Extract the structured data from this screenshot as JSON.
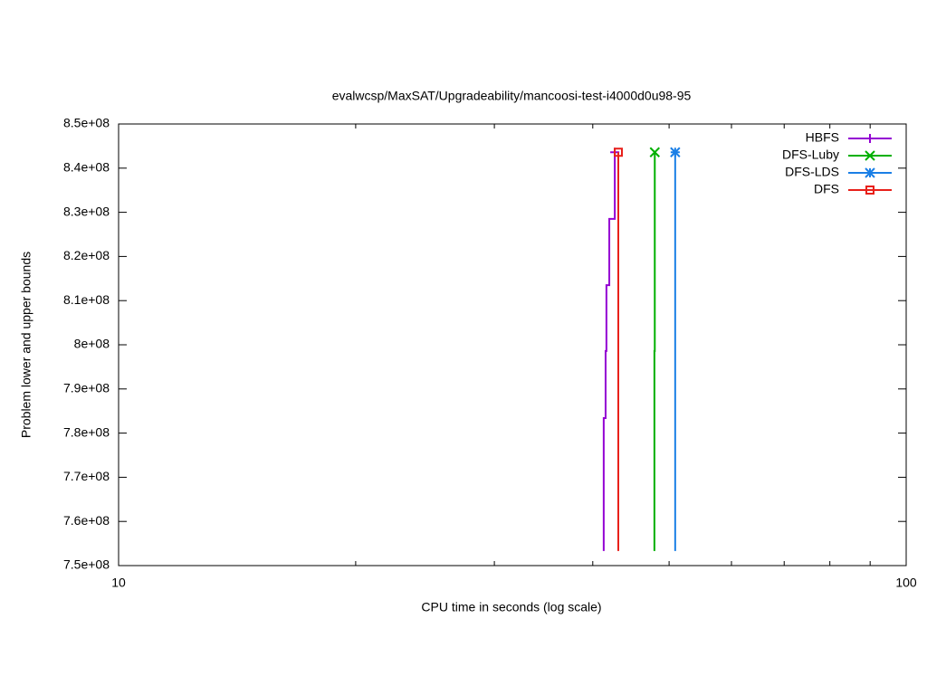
{
  "chart_data": {
    "type": "line",
    "title": "evalwcsp/MaxSAT/Upgradeability/mancoosi-test-i4000d0u98-95",
    "xlabel": "CPU time in seconds (log scale)",
    "ylabel": "Problem lower and upper bounds",
    "xscale": "log",
    "xlim": [
      10,
      100
    ],
    "xticks": [
      10,
      100
    ],
    "xminorticks": [
      20,
      30,
      40,
      50,
      60,
      70,
      80,
      90
    ],
    "ylim": [
      750000000,
      850000000
    ],
    "yticks": [
      {
        "value": 750000000,
        "label": "7.5e+08"
      },
      {
        "value": 760000000,
        "label": "7.6e+08"
      },
      {
        "value": 770000000,
        "label": "7.7e+08"
      },
      {
        "value": 780000000,
        "label": "7.8e+08"
      },
      {
        "value": 790000000,
        "label": "7.9e+08"
      },
      {
        "value": 800000000,
        "label": "8e+08"
      },
      {
        "value": 810000000,
        "label": "8.1e+08"
      },
      {
        "value": 820000000,
        "label": "8.2e+08"
      },
      {
        "value": 830000000,
        "label": "8.3e+08"
      },
      {
        "value": 840000000,
        "label": "8.4e+08"
      },
      {
        "value": 850000000,
        "label": "8.5e+08"
      }
    ],
    "legend": "top right",
    "series": [
      {
        "name": "HBFS",
        "color": "#9400d3",
        "marker": "plus",
        "x": [
          41.3,
          41.3,
          41.53,
          41.53,
          41.63,
          41.63,
          41.98,
          41.98,
          42.66,
          42.66
        ],
        "values": [
          753300000,
          783400000,
          783400000,
          798600000,
          798600000,
          813500000,
          813500000,
          828500000,
          828500000,
          843600000
        ]
      },
      {
        "name": "DFS-Luby",
        "color": "#00b000",
        "marker": "cross",
        "x": [
          47.9,
          47.9,
          47.95,
          47.95
        ],
        "values": [
          753300000,
          798600000,
          798600000,
          843600000
        ]
      },
      {
        "name": "DFS-LDS",
        "color": "#1a7fe6",
        "marker": "star",
        "x": [
          50.9,
          50.9
        ],
        "values": [
          753300000,
          843600000
        ]
      },
      {
        "name": "DFS",
        "color": "#e8201a",
        "marker": "square",
        "x": [
          43.1,
          43.1
        ],
        "values": [
          753300000,
          843600000
        ]
      }
    ]
  }
}
